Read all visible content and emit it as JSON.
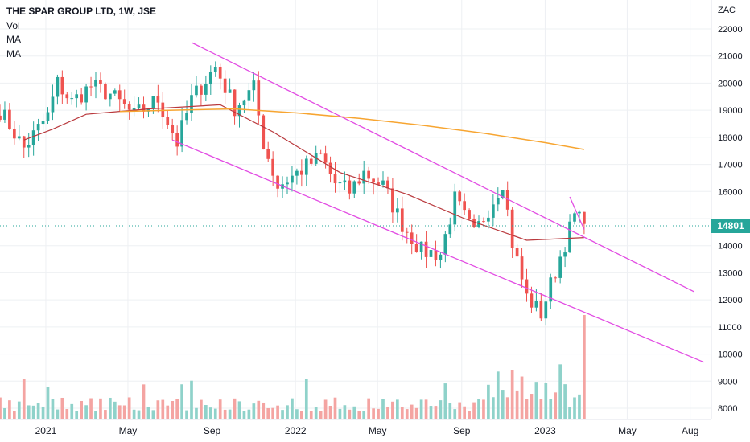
{
  "legend": {
    "title": "THE SPAR GROUP LTD, 1W, JSE",
    "vol": "Vol",
    "ma1": "MA",
    "ma2": "MA"
  },
  "price_axis": {
    "unit": "ZAC",
    "ticks": [
      "22000",
      "21000",
      "20000",
      "19000",
      "18000",
      "17000",
      "16000",
      "15000",
      "14000",
      "13000",
      "12000",
      "11000",
      "10000",
      "9000",
      "8000"
    ],
    "last_price": "14801"
  },
  "time_axis": {
    "ticks": [
      "2021",
      "May",
      "Sep",
      "2022",
      "May",
      "Sep",
      "2023",
      "May",
      "Aug"
    ]
  },
  "colors": {
    "up": "#26a69a",
    "down": "#ef5350",
    "vol_up": "#8fd2ca",
    "vol_down": "#f4a4a2",
    "ma_long": "#f7a531",
    "ma_short": "#b9393d",
    "channel": "#e24ce3",
    "grid": "#eef0f3",
    "axis_text": "#131722"
  },
  "chart_data": {
    "type": "candlestick",
    "title": "THE SPAR GROUP LTD, 1W, JSE",
    "ylabel": "ZAC",
    "ylim": [
      7800,
      22400
    ],
    "xrange": [
      "2020-10-26",
      "2023-09-01"
    ],
    "last_price": 14801,
    "grid": true,
    "waypoints": [
      {
        "date": "2020-10-26",
        "close": 19000
      },
      {
        "date": "2020-11-30",
        "close": 17600
      },
      {
        "date": "2021-01-04",
        "close": 18800
      },
      {
        "date": "2021-01-18",
        "close": 20000
      },
      {
        "date": "2021-02-08",
        "close": 19300
      },
      {
        "date": "2021-03-08",
        "close": 19900
      },
      {
        "date": "2021-04-05",
        "close": 19600
      },
      {
        "date": "2021-05-10",
        "close": 18800
      },
      {
        "date": "2021-06-14",
        "close": 19400
      },
      {
        "date": "2021-07-12",
        "close": 17800
      },
      {
        "date": "2021-08-02",
        "close": 19400
      },
      {
        "date": "2021-09-06",
        "close": 20600
      },
      {
        "date": "2021-10-04",
        "close": 19100
      },
      {
        "date": "2021-11-01",
        "close": 19800
      },
      {
        "date": "2021-11-15",
        "close": 17800
      },
      {
        "date": "2021-12-06",
        "close": 16200
      },
      {
        "date": "2022-01-10",
        "close": 16800
      },
      {
        "date": "2022-02-07",
        "close": 17300
      },
      {
        "date": "2022-02-28",
        "close": 16300
      },
      {
        "date": "2022-03-21",
        "close": 16000
      },
      {
        "date": "2022-04-11",
        "close": 16700
      },
      {
        "date": "2022-05-09",
        "close": 16200
      },
      {
        "date": "2022-06-06",
        "close": 14800
      },
      {
        "date": "2022-07-04",
        "close": 13800
      },
      {
        "date": "2022-08-01",
        "close": 13700
      },
      {
        "date": "2022-08-22",
        "close": 15700
      },
      {
        "date": "2022-09-19",
        "close": 14400
      },
      {
        "date": "2022-10-17",
        "close": 15700
      },
      {
        "date": "2022-10-31",
        "close": 16400
      },
      {
        "date": "2022-11-14",
        "close": 14100
      },
      {
        "date": "2022-12-05",
        "close": 12100
      },
      {
        "date": "2022-12-26",
        "close": 11500
      },
      {
        "date": "2023-01-23",
        "close": 13600
      },
      {
        "date": "2023-02-13",
        "close": 15100
      },
      {
        "date": "2023-02-27",
        "close": 14801
      }
    ],
    "moving_averages": [
      {
        "name": "MA",
        "points": [
          {
            "date": "2020-11-30",
            "value": 17900
          },
          {
            "date": "2021-01-11",
            "value": 18300
          },
          {
            "date": "2021-03-01",
            "value": 18850
          },
          {
            "date": "2021-06-01",
            "value": 19050
          },
          {
            "date": "2021-09-13",
            "value": 19200
          },
          {
            "date": "2021-11-29",
            "value": 18200
          },
          {
            "date": "2022-03-07",
            "value": 16700
          },
          {
            "date": "2022-06-13",
            "value": 15900
          },
          {
            "date": "2022-09-05",
            "value": 15000
          },
          {
            "date": "2022-12-05",
            "value": 14200
          },
          {
            "date": "2023-02-27",
            "value": 14300
          }
        ]
      },
      {
        "name": "MA",
        "points": [
          {
            "date": "2021-04-19",
            "value": 18950
          },
          {
            "date": "2021-07-05",
            "value": 19000
          },
          {
            "date": "2021-10-04",
            "value": 19050
          },
          {
            "date": "2022-01-03",
            "value": 18900
          },
          {
            "date": "2022-04-04",
            "value": 18700
          },
          {
            "date": "2022-07-04",
            "value": 18450
          },
          {
            "date": "2022-10-03",
            "value": 18150
          },
          {
            "date": "2023-01-02",
            "value": 17800
          },
          {
            "date": "2023-02-27",
            "value": 17550
          }
        ]
      }
    ],
    "trendlines": [
      {
        "from": {
          "date": "2021-08-02",
          "value": 21500
        },
        "to": {
          "date": "2023-08-07",
          "value": 12300
        }
      },
      {
        "from": {
          "date": "2021-07-05",
          "value": 17900
        },
        "to": {
          "date": "2023-08-21",
          "value": 9700
        }
      },
      {
        "from": {
          "date": "2023-02-06",
          "value": 15800
        },
        "to": {
          "date": "2023-02-27",
          "value": 14600
        }
      }
    ],
    "volume": {
      "max_date": "2023-02-27",
      "description": "relative weekly volume bars, last bar largest"
    }
  }
}
